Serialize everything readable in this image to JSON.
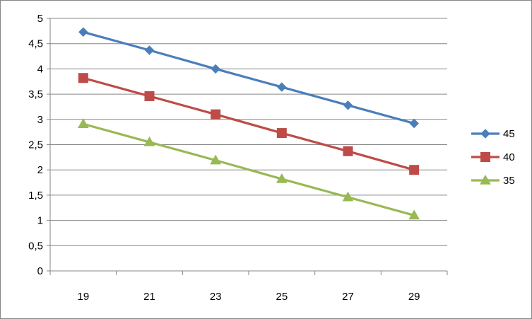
{
  "chart_data": {
    "type": "line",
    "title": "",
    "xlabel": "",
    "ylabel": "",
    "categories": [
      "19",
      "21",
      "23",
      "25",
      "27",
      "29"
    ],
    "y_ticks": [
      "0",
      "0,5",
      "1",
      "1,5",
      "2",
      "2,5",
      "3",
      "3,5",
      "4",
      "4,5",
      "5"
    ],
    "ylim": [
      0,
      5
    ],
    "grid": "horizontal major gridlines",
    "legend": "right",
    "series": [
      {
        "name": "45",
        "values": [
          4.73,
          4.37,
          4.0,
          3.64,
          3.28,
          2.92
        ],
        "color": "#4a7ebb",
        "marker": "diamond"
      },
      {
        "name": "40",
        "values": [
          3.82,
          3.46,
          3.1,
          2.73,
          2.37,
          2.0
        ],
        "color": "#be4b48",
        "marker": "square"
      },
      {
        "name": "35",
        "values": [
          2.91,
          2.55,
          2.19,
          1.82,
          1.46,
          1.1
        ],
        "color": "#98b954",
        "marker": "triangle"
      }
    ]
  }
}
